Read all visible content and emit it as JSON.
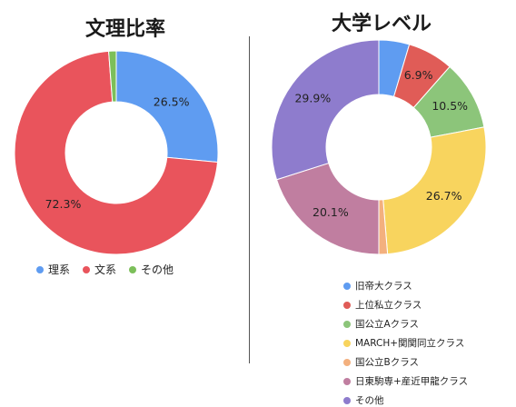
{
  "chart_data": [
    {
      "type": "pie",
      "variant": "donut",
      "title": "文理比率",
      "categories": [
        "理系",
        "文系",
        "その他"
      ],
      "values": [
        26.5,
        72.3,
        1.2
      ],
      "data_labels": [
        "26.5%",
        "72.3%",
        ""
      ],
      "colors": [
        "#5f9cf1",
        "#e9545c",
        "#7cbf5a"
      ],
      "legend_position": "bottom"
    },
    {
      "type": "pie",
      "variant": "donut",
      "title": "大学レベル",
      "categories": [
        "旧帝大クラス",
        "上位私立クラス",
        "国公立Aクラス",
        "MARCH+関関同立クラス",
        "国公立Bクラス",
        "日東駒専+産近甲龍クラス",
        "その他"
      ],
      "values": [
        4.6,
        6.9,
        10.5,
        26.7,
        1.3,
        20.1,
        29.9
      ],
      "data_labels": [
        "",
        "6.9%",
        "10.5%",
        "26.7%",
        "",
        "20.1%",
        "29.9%"
      ],
      "colors": [
        "#5f9cf1",
        "#e05c57",
        "#8cc57a",
        "#f8d45e",
        "#f3b07e",
        "#c07ea0",
        "#8e7ccd"
      ],
      "legend_position": "bottom"
    }
  ]
}
